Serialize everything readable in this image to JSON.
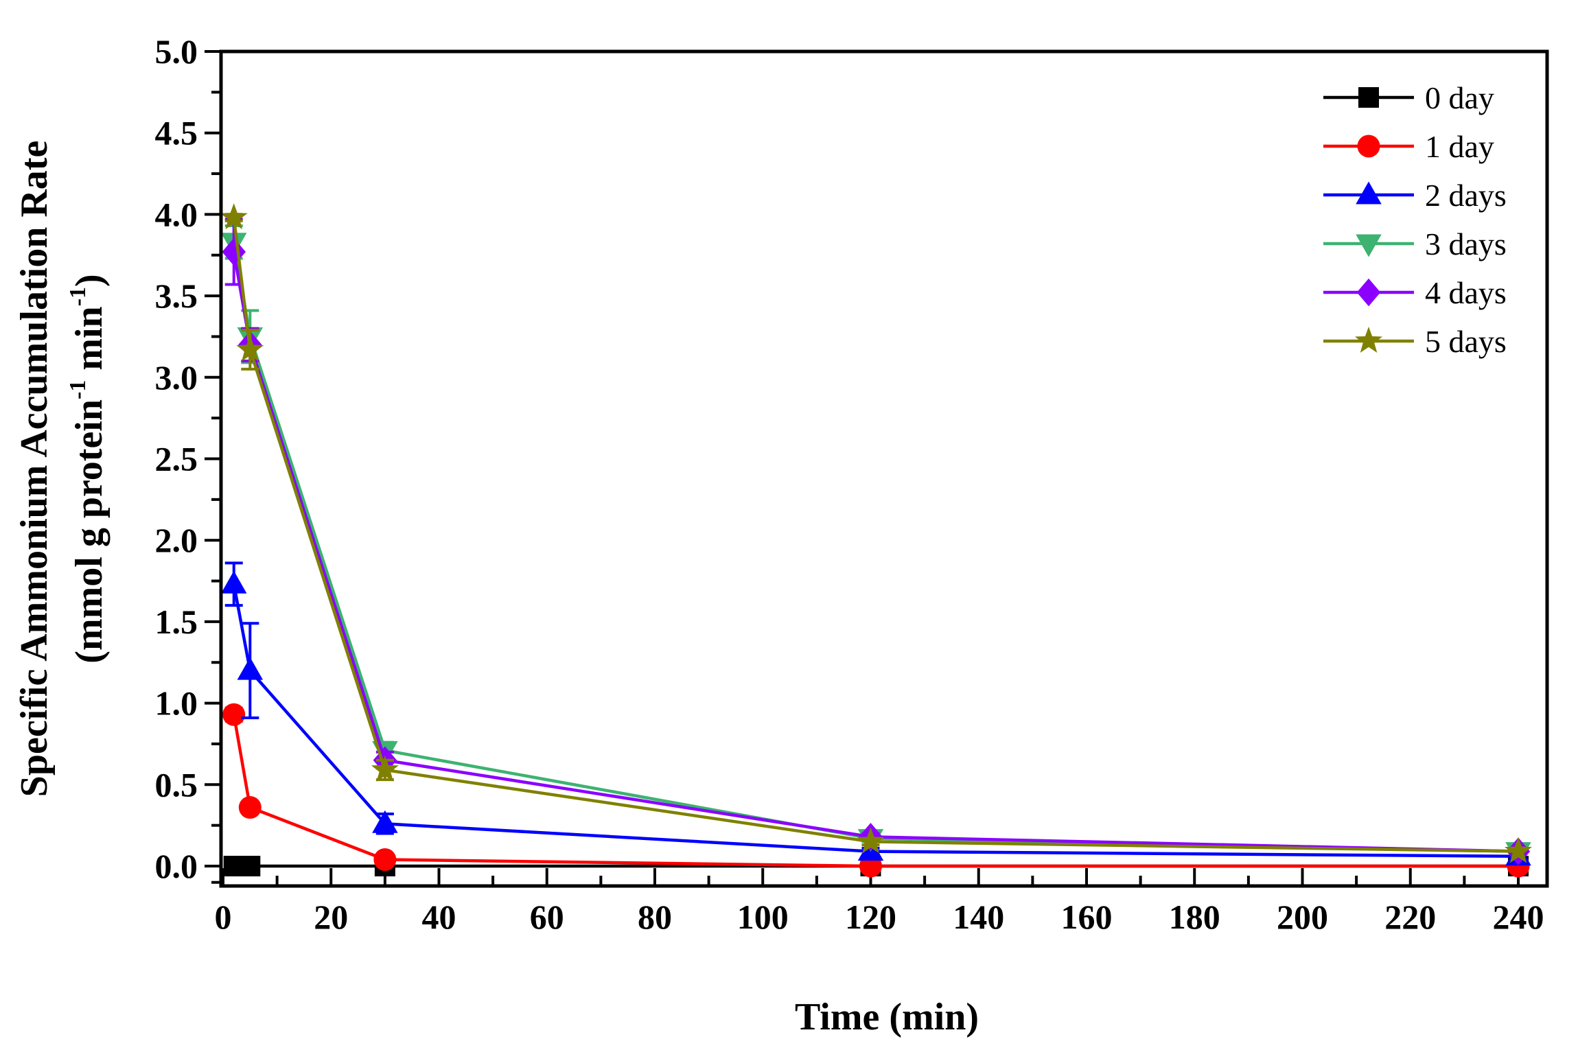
{
  "chart_data": {
    "type": "line",
    "xlabel": "Time (min)",
    "ylabel_line1": "Specific Ammonium Accumulation Rate",
    "ylabel_line2": "(mmol g protein",
    "ylabel_sup1": "-1",
    "ylabel_mid": " min",
    "ylabel_sup2": "-1",
    "ylabel_end": ")",
    "xlim": [
      0,
      245
    ],
    "ylim": [
      -0.1,
      5.0
    ],
    "xticks": [
      "0",
      "20",
      "40",
      "60",
      "80",
      "100",
      "120",
      "140",
      "160",
      "180",
      "200",
      "220",
      "240"
    ],
    "yticks": [
      "0.0",
      "0.5",
      "1.0",
      "1.5",
      "2.0",
      "2.5",
      "3.0",
      "3.5",
      "4.0",
      "4.5",
      "5.0"
    ],
    "legend_position": "top-right",
    "x": [
      2,
      5,
      30,
      120,
      240
    ],
    "series": [
      {
        "name": "0 day",
        "color": "#000000",
        "marker": "square",
        "values": [
          0,
          0,
          0,
          0,
          0
        ],
        "errors": [
          0,
          0,
          0,
          0,
          0
        ]
      },
      {
        "name": "1 day",
        "color": "#ff0000",
        "marker": "circle",
        "values": [
          0.93,
          0.36,
          0.04,
          0.0,
          0.0
        ],
        "errors": [
          0.04,
          0.02,
          0.01,
          0.01,
          0.01
        ]
      },
      {
        "name": "2 days",
        "color": "#0000ff",
        "marker": "triangle-up",
        "values": [
          1.73,
          1.2,
          0.26,
          0.09,
          0.06
        ],
        "errors": [
          0.13,
          0.29,
          0.06,
          0.02,
          0.01
        ]
      },
      {
        "name": "3 days",
        "color": "#3cb371",
        "marker": "triangle-down",
        "values": [
          3.83,
          3.25,
          0.71,
          0.17,
          0.09
        ],
        "errors": [
          0.1,
          0.16,
          0.05,
          0.02,
          0.01
        ]
      },
      {
        "name": "4 days",
        "color": "#8b00ff",
        "marker": "diamond",
        "values": [
          3.77,
          3.2,
          0.65,
          0.18,
          0.09
        ],
        "errors": [
          0.2,
          0.1,
          0.05,
          0.02,
          0.01
        ]
      },
      {
        "name": "5 days",
        "color": "#808000",
        "marker": "star",
        "values": [
          3.98,
          3.17,
          0.59,
          0.15,
          0.09
        ],
        "errors": [
          0.02,
          0.12,
          0.06,
          0.02,
          0.01
        ]
      }
    ]
  }
}
